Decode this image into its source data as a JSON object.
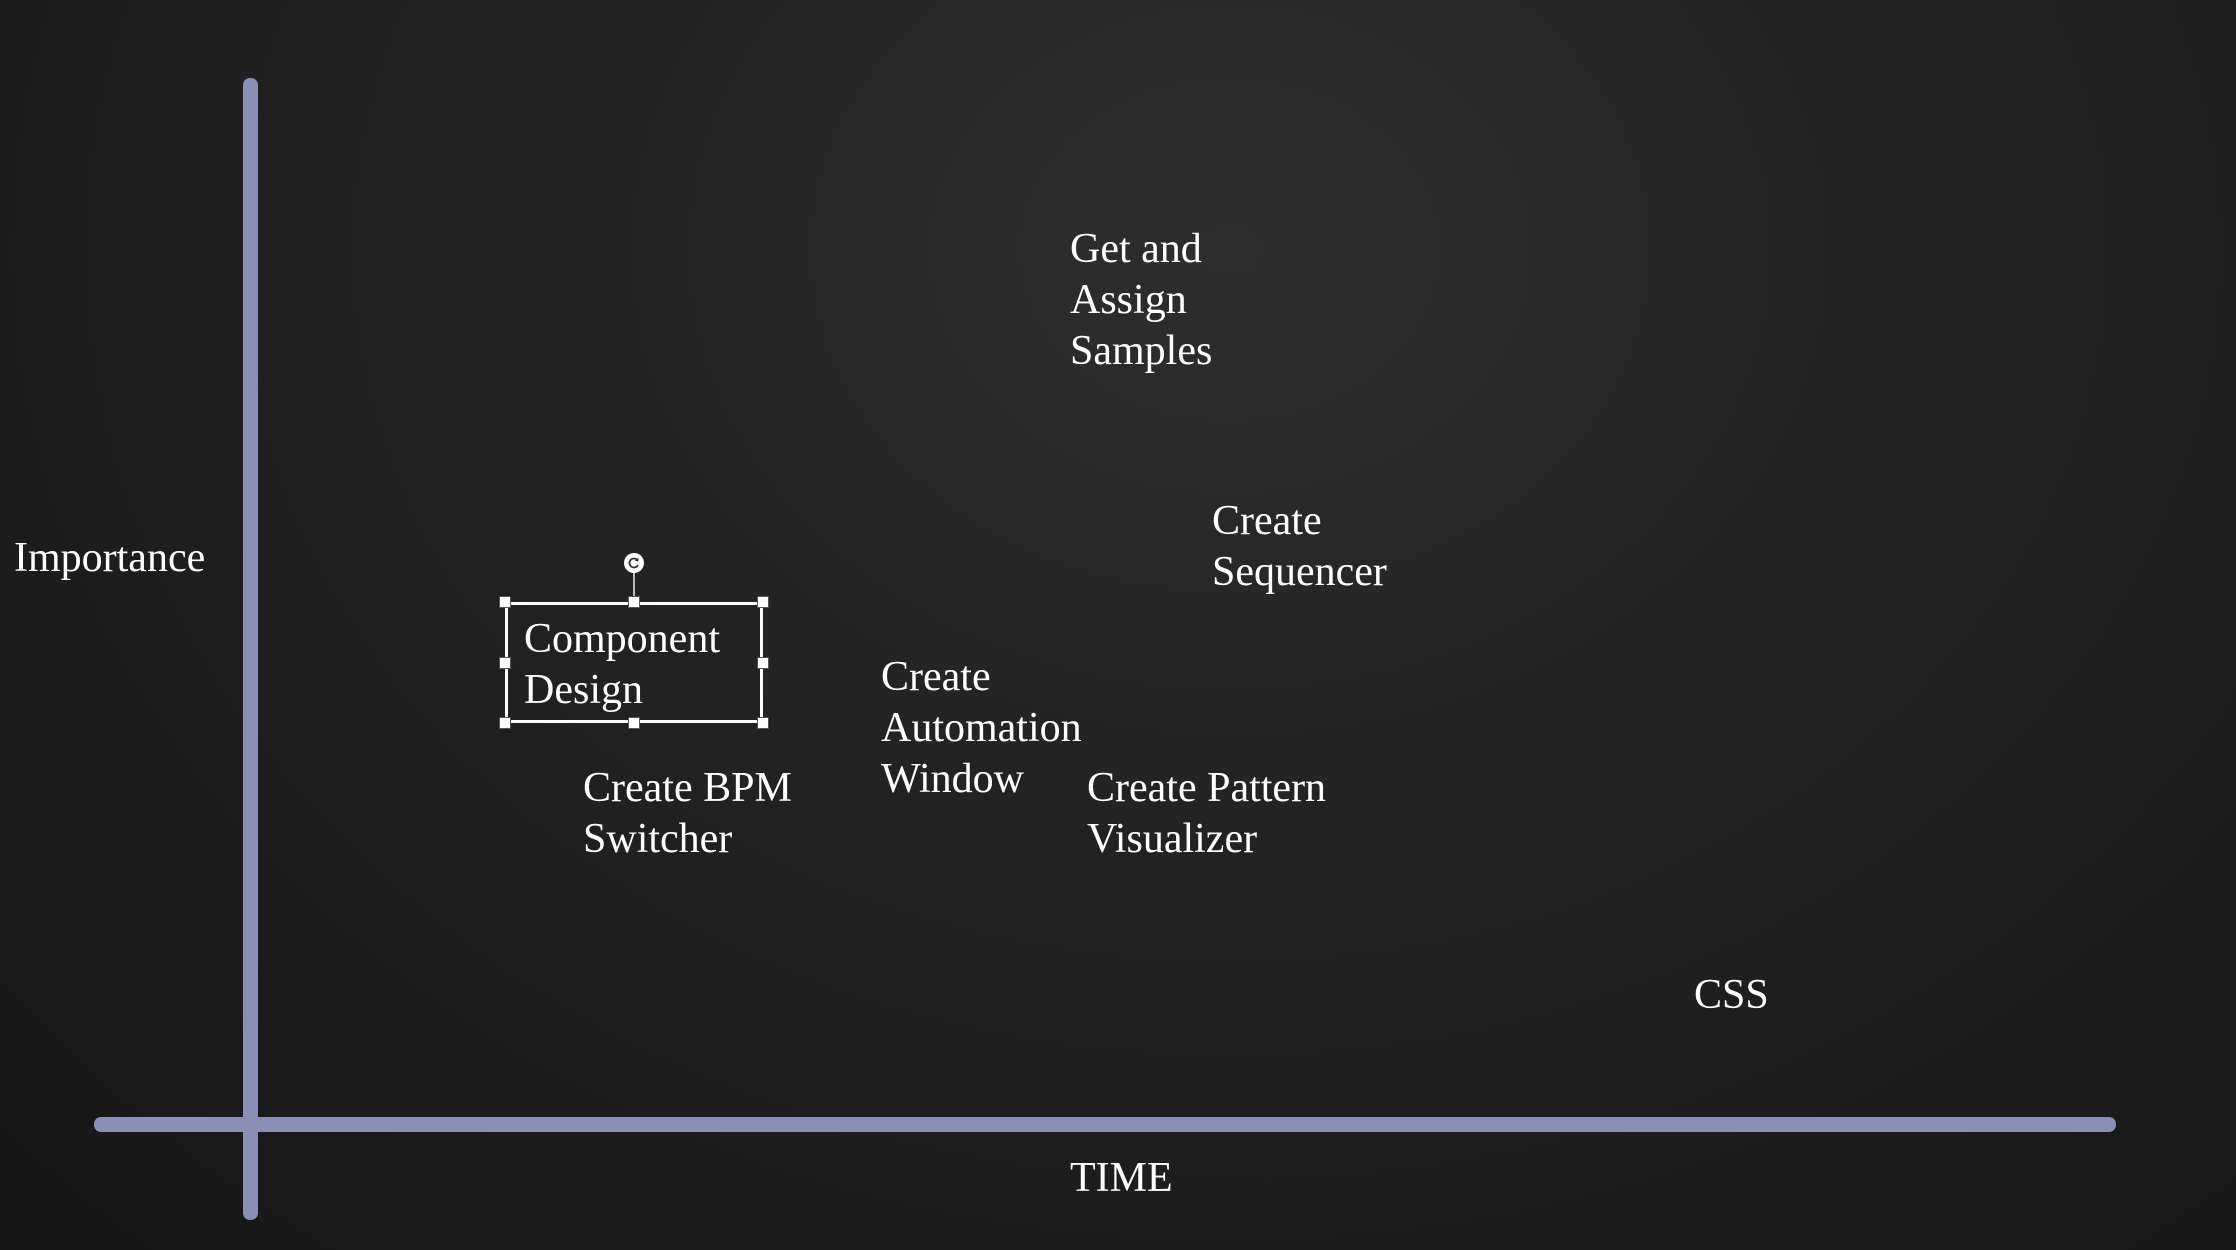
{
  "colors": {
    "background": "#1b1b1b",
    "axis": "#8a8fb8",
    "text": "#ffffff"
  },
  "axes": {
    "y_label": "Importance",
    "x_label": "TIME"
  },
  "items": [
    {
      "id": "get-and-assign-samples",
      "text": "Get and\nAssign\nSamples"
    },
    {
      "id": "create-sequencer",
      "text": "Create\nSequencer"
    },
    {
      "id": "component-design",
      "text": "Component\nDesign",
      "selected": true
    },
    {
      "id": "create-automation-window",
      "text": "Create\nAutomation\nWindow"
    },
    {
      "id": "create-bpm-switcher",
      "text": "Create BPM\nSwitcher"
    },
    {
      "id": "create-pattern-visualizer",
      "text": "Create Pattern\nVisualizer"
    },
    {
      "id": "css",
      "text": "CSS"
    }
  ],
  "icons": {
    "rotate_handle": "rotate-icon",
    "resize_handle": "resize-handle-icon"
  }
}
